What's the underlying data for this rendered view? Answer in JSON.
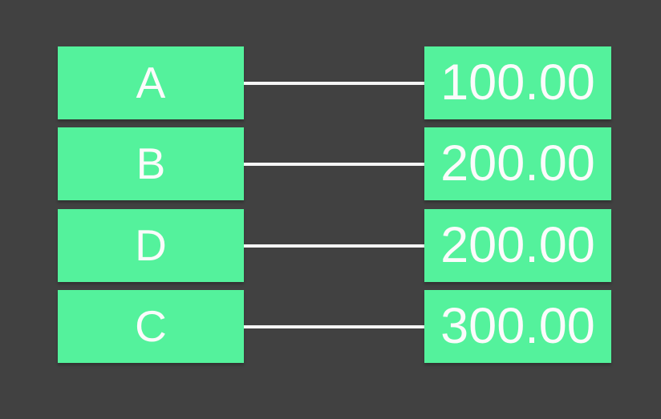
{
  "canvas": {
    "background_color": "#414141",
    "node_color": "#54f29c",
    "edge_color": "#f5f5f5",
    "text_color": "#fbfbfb"
  },
  "graph": {
    "rows": [
      {
        "label": "A",
        "value": "100.00"
      },
      {
        "label": "B",
        "value": "200.00"
      },
      {
        "label": "D",
        "value": "200.00"
      },
      {
        "label": "C",
        "value": "300.00"
      }
    ]
  }
}
